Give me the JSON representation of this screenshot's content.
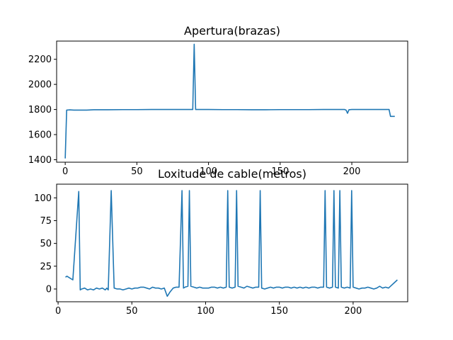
{
  "chart_data": [
    {
      "type": "line",
      "title": "Apertura(brazas)",
      "xlabel": "",
      "ylabel": "",
      "xlim": [
        -6,
        239
      ],
      "ylim": [
        1380,
        2345
      ],
      "xticks": [
        0,
        50,
        100,
        150,
        200
      ],
      "yticks": [
        1400,
        1600,
        1800,
        2000,
        2200
      ],
      "grid": false,
      "line_color": "#1f77b4",
      "series": [
        {
          "x": [
            0,
            1,
            3,
            6,
            10,
            15,
            20,
            30,
            40,
            50,
            60,
            70,
            80,
            88,
            89,
            90,
            91,
            92,
            95,
            100,
            110,
            120,
            130,
            140,
            150,
            160,
            170,
            180,
            190,
            195,
            196,
            197,
            198,
            200,
            205,
            210,
            215,
            220,
            225,
            226,
            227,
            230
          ],
          "y": [
            1410,
            1795,
            1797,
            1795,
            1795,
            1795,
            1798,
            1798,
            1799,
            1799,
            1800,
            1800,
            1800,
            1800,
            1800,
            2320,
            1800,
            1800,
            1800,
            1800,
            1799,
            1799,
            1798,
            1798,
            1799,
            1799,
            1799,
            1800,
            1800,
            1800,
            1795,
            1770,
            1798,
            1800,
            1800,
            1800,
            1800,
            1800,
            1800,
            1800,
            1745,
            1745
          ]
        }
      ]
    },
    {
      "type": "line",
      "title": "Loxitude de cable(metros)",
      "xlabel": "",
      "ylabel": "",
      "xlim": [
        -1,
        237
      ],
      "ylim": [
        -14,
        115
      ],
      "xticks": [
        0,
        50,
        100,
        150,
        200
      ],
      "yticks": [
        0,
        25,
        50,
        75,
        100
      ],
      "grid": false,
      "line_color": "#1f77b4",
      "series": [
        {
          "x": [
            5,
            6,
            8,
            10,
            14,
            15,
            16,
            18,
            20,
            22,
            24,
            26,
            28,
            30,
            32,
            33,
            34,
            36,
            38,
            40,
            42,
            44,
            46,
            48,
            50,
            52,
            54,
            56,
            58,
            60,
            62,
            64,
            66,
            68,
            70,
            72,
            74,
            76,
            78,
            80,
            82,
            84,
            85,
            86,
            88,
            89,
            90,
            92,
            94,
            96,
            98,
            100,
            102,
            104,
            106,
            108,
            110,
            112,
            114,
            115,
            116,
            118,
            120,
            121,
            122,
            124,
            126,
            128,
            130,
            132,
            134,
            136,
            137,
            138,
            140,
            142,
            144,
            146,
            148,
            150,
            152,
            154,
            156,
            158,
            160,
            162,
            164,
            166,
            168,
            170,
            172,
            174,
            176,
            178,
            180,
            181,
            182,
            184,
            186,
            187,
            188,
            190,
            191,
            192,
            194,
            196,
            198,
            199,
            200,
            202,
            204,
            206,
            208,
            210,
            212,
            214,
            216,
            218,
            220,
            222,
            224,
            226,
            228,
            230
          ],
          "y": [
            13,
            14,
            12,
            10,
            107,
            -1,
            0,
            1,
            -1,
            0,
            -1,
            1,
            0,
            1,
            -1,
            1,
            -1,
            108,
            1,
            0,
            0,
            -1,
            0,
            1,
            0,
            1,
            1,
            2,
            2,
            1,
            0,
            2,
            1,
            1,
            0,
            1,
            -8,
            -3,
            1,
            2,
            2,
            108,
            1,
            2,
            3,
            108,
            3,
            2,
            1,
            2,
            1,
            1,
            1,
            2,
            2,
            1,
            2,
            1,
            2,
            108,
            2,
            1,
            2,
            108,
            3,
            2,
            1,
            3,
            2,
            1,
            2,
            2,
            108,
            1,
            0,
            1,
            2,
            1,
            2,
            2,
            1,
            2,
            2,
            1,
            2,
            1,
            2,
            1,
            2,
            1,
            2,
            2,
            1,
            2,
            2,
            108,
            2,
            1,
            2,
            108,
            2,
            1,
            108,
            2,
            1,
            2,
            1,
            108,
            2,
            1,
            0,
            1,
            1,
            2,
            1,
            0,
            1,
            3,
            1,
            2,
            1,
            4,
            7,
            10
          ]
        }
      ]
    }
  ]
}
